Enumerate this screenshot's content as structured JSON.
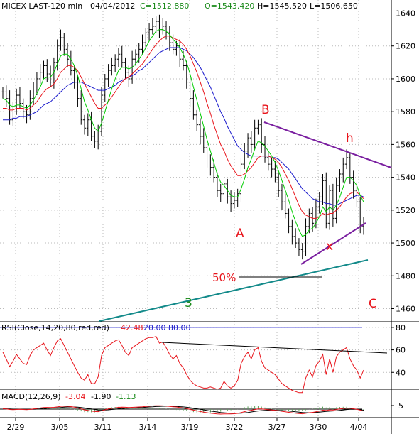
{
  "header": {
    "symbol": "MICEX LAST-120 min",
    "date": "04/04/2012",
    "close": "C=1512.880",
    "open": "O=1543.420",
    "high": "H=1545.520",
    "low": "L=1506.650"
  },
  "rsi_header": {
    "label": "RSI(Close,14,20,80,red,red)",
    "value": "42.48",
    "lower": "20.00",
    "upper": "80.00"
  },
  "macd_header": {
    "label": "MACD(12,26,9)",
    "v1": "-3.04",
    "v2": "-1.90",
    "v3": "-1.13"
  },
  "annotations": {
    "A": "A",
    "B": "B",
    "C": "C",
    "h": "h",
    "x": "x",
    "fib": "50%",
    "wave3": "3"
  },
  "colors": {
    "price": "#000000",
    "ma_fast": "#00cc00",
    "ma_mid": "#e8141b",
    "ma_slow": "#1a1acc",
    "rsi": "#e8141b",
    "trend_purple": "#7a1fa0",
    "trend_teal": "#138a8a",
    "annotation_red": "#e8141b",
    "annotation_green": "#1a8a1a"
  },
  "chart_data": {
    "type": "line",
    "x_ticks": [
      "2/29",
      "3/05",
      "3/11",
      "3/14",
      "3/19",
      "3/22",
      "3/27",
      "3/30",
      "4/04"
    ],
    "price_axis": {
      "ticks": [
        1460,
        1480,
        1500,
        1520,
        1540,
        1560,
        1580,
        1600,
        1620,
        1640
      ],
      "range": [
        1452,
        1648
      ]
    },
    "rsi_axis": {
      "ticks": [
        40,
        60,
        80
      ],
      "range": [
        25,
        85
      ]
    },
    "macd_axis": {
      "ticks": [
        5
      ],
      "range": [
        -10,
        10
      ]
    },
    "price_close": [
      1592,
      1588,
      1575,
      1583,
      1590,
      1585,
      1580,
      1578,
      1588,
      1595,
      1600,
      1604,
      1608,
      1603,
      1598,
      1610,
      1620,
      1625,
      1618,
      1612,
      1605,
      1598,
      1588,
      1575,
      1570,
      1575,
      1565,
      1562,
      1568,
      1590,
      1600,
      1605,
      1608,
      1612,
      1615,
      1610,
      1604,
      1600,
      1612,
      1615,
      1618,
      1622,
      1628,
      1630,
      1632,
      1635,
      1630,
      1632,
      1628,
      1622,
      1618,
      1620,
      1612,
      1608,
      1598,
      1588,
      1578,
      1572,
      1565,
      1558,
      1550,
      1546,
      1540,
      1532,
      1530,
      1536,
      1528,
      1524,
      1526,
      1530,
      1548,
      1556,
      1564,
      1560,
      1570,
      1572,
      1560,
      1552,
      1548,
      1545,
      1540,
      1532,
      1525,
      1518,
      1510,
      1504,
      1500,
      1496,
      1495,
      1510,
      1518,
      1512,
      1522,
      1528,
      1538,
      1512,
      1532,
      1515,
      1535,
      1542,
      1548,
      1552,
      1540,
      1532,
      1525,
      1510,
      1512
    ],
    "ma_fast": [
      1588,
      1587,
      1584,
      1583,
      1584,
      1584,
      1583,
      1582,
      1584,
      1587,
      1591,
      1595,
      1600,
      1601,
      1601,
      1604,
      1609,
      1614,
      1615,
      1615,
      1612,
      1608,
      1602,
      1594,
      1586,
      1581,
      1575,
      1570,
      1568,
      1573,
      1580,
      1587,
      1594,
      1600,
      1605,
      1607,
      1607,
      1606,
      1607,
      1609,
      1612,
      1615,
      1619,
      1623,
      1626,
      1629,
      1630,
      1630,
      1629,
      1627,
      1624,
      1622,
      1619,
      1615,
      1610,
      1603,
      1595,
      1587,
      1579,
      1571,
      1563,
      1556,
      1549,
      1542,
      1537,
      1535,
      1532,
      1529,
      1528,
      1528,
      1533,
      1539,
      1546,
      1551,
      1557,
      1562,
      1561,
      1559,
      1556,
      1553,
      1549,
      1544,
      1538,
      1532,
      1526,
      1519,
      1513,
      1508,
      1504,
      1505,
      1508,
      1509,
      1512,
      1516,
      1522,
      1519,
      1522,
      1520,
      1523,
      1528,
      1534,
      1540,
      1540,
      1538,
      1535,
      1529,
      1525
    ],
    "ma_mid": [
      1582,
      1582,
      1581,
      1581,
      1582,
      1582,
      1582,
      1581,
      1582,
      1584,
      1586,
      1589,
      1592,
      1594,
      1595,
      1597,
      1600,
      1604,
      1606,
      1608,
      1608,
      1607,
      1605,
      1601,
      1597,
      1593,
      1589,
      1585,
      1582,
      1582,
      1584,
      1586,
      1589,
      1592,
      1595,
      1598,
      1600,
      1601,
      1603,
      1605,
      1607,
      1609,
      1612,
      1615,
      1618,
      1621,
      1623,
      1625,
      1626,
      1626,
      1625,
      1624,
      1623,
      1621,
      1618,
      1614,
      1609,
      1604,
      1598,
      1592,
      1585,
      1579,
      1572,
      1566,
      1560,
      1556,
      1551,
      1547,
      1544,
      1541,
      1541,
      1542,
      1544,
      1546,
      1549,
      1552,
      1553,
      1553,
      1553,
      1552,
      1551,
      1549,
      1546,
      1542,
      1538,
      1533,
      1528,
      1523,
      1519,
      1517,
      1516,
      1515,
      1515,
      1516,
      1518,
      1517,
      1518,
      1518,
      1520,
      1522,
      1525,
      1528,
      1530,
      1531,
      1531,
      1529,
      1527
    ],
    "ma_slow": [
      1575,
      1575,
      1575,
      1576,
      1576,
      1577,
      1577,
      1577,
      1578,
      1579,
      1580,
      1582,
      1584,
      1585,
      1586,
      1588,
      1590,
      1592,
      1594,
      1596,
      1597,
      1598,
      1598,
      1598,
      1597,
      1596,
      1595,
      1594,
      1593,
      1593,
      1593,
      1594,
      1595,
      1596,
      1598,
      1599,
      1600,
      1601,
      1602,
      1603,
      1605,
      1606,
      1608,
      1610,
      1612,
      1614,
      1616,
      1617,
      1618,
      1619,
      1619,
      1619,
      1619,
      1618,
      1617,
      1615,
      1613,
      1610,
      1607,
      1603,
      1599,
      1595,
      1590,
      1585,
      1580,
      1576,
      1571,
      1567,
      1563,
      1559,
      1557,
      1555,
      1554,
      1553,
      1553,
      1553,
      1553,
      1553,
      1553,
      1552,
      1552,
      1551,
      1549,
      1547,
      1545,
      1542,
      1539,
      1536,
      1533,
      1531,
      1529,
      1527,
      1526,
      1525,
      1525,
      1524,
      1524,
      1523,
      1523,
      1524,
      1525,
      1526,
      1527,
      1528,
      1529,
      1529,
      1528
    ],
    "rsi": [
      58,
      52,
      45,
      50,
      56,
      52,
      48,
      47,
      55,
      60,
      62,
      64,
      66,
      60,
      55,
      62,
      68,
      70,
      64,
      58,
      52,
      46,
      40,
      35,
      33,
      38,
      30,
      30,
      36,
      55,
      62,
      64,
      66,
      68,
      69,
      64,
      58,
      55,
      62,
      64,
      66,
      68,
      70,
      71,
      71,
      72,
      66,
      67,
      62,
      56,
      52,
      55,
      48,
      44,
      38,
      33,
      30,
      28,
      27,
      26,
      26,
      27,
      26,
      25,
      26,
      32,
      28,
      26,
      28,
      33,
      48,
      54,
      58,
      52,
      60,
      62,
      50,
      44,
      42,
      40,
      38,
      34,
      30,
      28,
      26,
      24,
      23,
      22,
      22,
      35,
      42,
      36,
      46,
      50,
      56,
      38,
      52,
      40,
      54,
      58,
      60,
      62,
      52,
      46,
      42,
      35,
      42
    ],
    "rsi_upper": 80,
    "rsi_lower": 20,
    "macd_line": [
      0.5,
      0.2,
      -0.5,
      -0.8,
      -0.5,
      -0.3,
      -0.5,
      -0.8,
      -0.4,
      0.3,
      1.0,
      1.8,
      2.5,
      2.7,
      2.6,
      2.8,
      3.5,
      4.3,
      4.6,
      4.4,
      3.9,
      3.0,
      1.8,
      0.3,
      -1.2,
      -2.0,
      -3.0,
      -3.8,
      -4.0,
      -2.5,
      -1.0,
      0.2,
      1.2,
      2.0,
      2.8,
      3.0,
      2.9,
      2.6,
      2.8,
      3.0,
      3.3,
      3.7,
      4.2,
      4.6,
      5.0,
      5.3,
      5.2,
      5.1,
      4.8,
      4.2,
      3.6,
      3.3,
      2.6,
      1.8,
      0.8,
      -0.4,
      -1.6,
      -2.7,
      -3.8,
      -4.8,
      -5.6,
      -6.3,
      -6.9,
      -7.5,
      -7.8,
      -7.6,
      -7.6,
      -7.5,
      -7.2,
      -6.7,
      -5.3,
      -4.0,
      -2.6,
      -1.8,
      -0.7,
      0.2,
      0.2,
      -0.3,
      -0.8,
      -1.3,
      -1.9,
      -2.6,
      -3.4,
      -4.2,
      -5.0,
      -5.7,
      -6.3,
      -6.9,
      -7.3,
      -6.6,
      -5.6,
      -5.1,
      -4.1,
      -3.0,
      -1.7,
      -2.1,
      -1.2,
      -1.6,
      -0.7,
      0.2,
      1.0,
      1.6,
      1.2,
      0.5,
      -0.3,
      -1.6,
      -3.04
    ],
    "signal_line": [
      0.4,
      0.4,
      0.2,
      0.0,
      -0.1,
      -0.1,
      -0.2,
      -0.3,
      -0.3,
      -0.2,
      0.0,
      0.4,
      0.8,
      1.2,
      1.5,
      1.8,
      2.1,
      2.6,
      3.0,
      3.3,
      3.4,
      3.3,
      3.0,
      2.5,
      1.8,
      1.0,
      0.2,
      -0.6,
      -1.3,
      -1.5,
      -1.4,
      -1.1,
      -0.6,
      -0.1,
      0.5,
      1.0,
      1.4,
      1.6,
      1.8,
      2.0,
      2.3,
      2.6,
      2.9,
      3.3,
      3.6,
      4.0,
      4.2,
      4.4,
      4.5,
      4.4,
      4.3,
      4.1,
      3.8,
      3.4,
      2.9,
      2.2,
      1.4,
      0.6,
      -0.3,
      -1.2,
      -2.1,
      -3.0,
      -3.8,
      -4.5,
      -5.2,
      -5.7,
      -6.1,
      -6.4,
      -6.6,
      -6.6,
      -6.3,
      -5.8,
      -5.2,
      -4.5,
      -3.7,
      -2.9,
      -2.3,
      -1.9,
      -1.7,
      -1.6,
      -1.7,
      -1.9,
      -2.2,
      -2.6,
      -3.1,
      -3.6,
      -4.2,
      -4.7,
      -5.2,
      -5.5,
      -5.5,
      -5.4,
      -5.1,
      -4.7,
      -4.1,
      -3.7,
      -3.2,
      -2.9,
      -2.5,
      -1.9,
      -1.3,
      -0.7,
      -0.3,
      -0.1,
      -0.2,
      -0.5,
      -1.9
    ]
  }
}
